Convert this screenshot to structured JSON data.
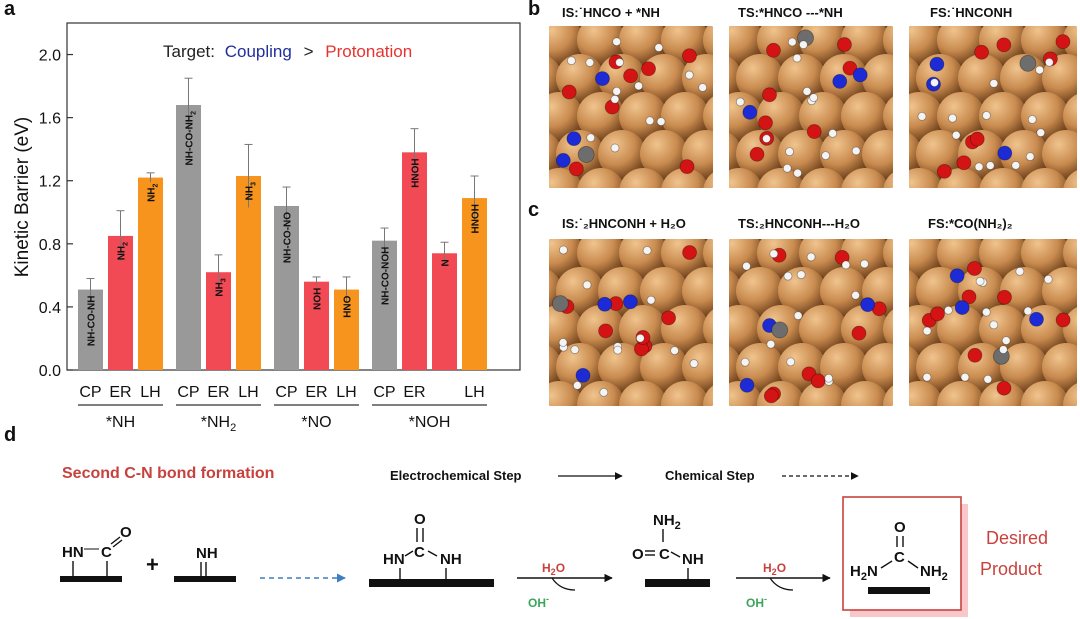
{
  "panels": {
    "a": "a",
    "b": "b",
    "c": "c",
    "d": "d"
  },
  "chart_data": {
    "type": "bar",
    "ylabel": "Kinetic Barrier (eV)",
    "ylim": [
      0.0,
      2.2
    ],
    "yticks": [
      "0.0",
      "0.4",
      "0.8",
      "1.2",
      "1.6",
      "2.0"
    ],
    "target_label": "Target:",
    "coupling_label": "Coupling",
    "gt_label": ">",
    "protonation_label": "Protonation",
    "colors": {
      "CP": "#999999",
      "ER": "#f24a54",
      "LH": "#f7941d",
      "coupling": "#1f2f9c",
      "protonation": "#e8322f"
    },
    "groups": [
      {
        "name_main": "*NH",
        "name_sub": "",
        "bars": [
          {
            "type": "CP",
            "tick": "CP",
            "value": 0.51,
            "err": 0.07,
            "label": "NH-CO-NH",
            "sub": ""
          },
          {
            "type": "ER",
            "tick": "ER",
            "value": 0.85,
            "err": 0.16,
            "label": "NH",
            "sub": "2"
          },
          {
            "type": "LH",
            "tick": "LH",
            "value": 1.22,
            "err": 0.03,
            "label": "NH",
            "sub": "2"
          }
        ]
      },
      {
        "name_main": "*NH",
        "name_sub": "2",
        "bars": [
          {
            "type": "CP",
            "tick": "CP",
            "value": 1.68,
            "err": 0.17,
            "label": "NH-CO-NH",
            "sub": "2"
          },
          {
            "type": "ER",
            "tick": "ER",
            "value": 0.62,
            "err": 0.11,
            "label": "NH",
            "sub": "3"
          },
          {
            "type": "LH",
            "tick": "LH",
            "value": 1.23,
            "err": 0.2,
            "label": "NH",
            "sub": "3"
          }
        ]
      },
      {
        "name_main": "*NO",
        "name_sub": "",
        "bars": [
          {
            "type": "CP",
            "tick": "CP",
            "value": 1.04,
            "err": 0.12,
            "label": "NH-CO-NO",
            "sub": ""
          },
          {
            "type": "ER",
            "tick": "ER",
            "value": 0.56,
            "err": 0.03,
            "label": "NOH",
            "sub": ""
          },
          {
            "type": "LH",
            "tick": "LH",
            "value": 0.51,
            "err": 0.08,
            "label": "HNO",
            "sub": ""
          }
        ]
      },
      {
        "name_main": "*NOH",
        "name_sub": "",
        "bars": [
          {
            "type": "CP",
            "tick": "CP",
            "value": 0.82,
            "err": 0.08,
            "label": "NH-CO-NOH",
            "sub": ""
          },
          {
            "type": "ER",
            "tick": "ER",
            "value": 1.38,
            "err": 0.15,
            "label": "HNOH",
            "sub": ""
          },
          {
            "type": "ER",
            "tick": "",
            "value": 0.74,
            "err": 0.07,
            "label": "N",
            "sub": ""
          },
          {
            "type": "LH",
            "tick": "LH",
            "value": 1.09,
            "err": 0.14,
            "label": "HNOH",
            "sub": ""
          }
        ]
      }
    ]
  },
  "panel_b": {
    "is_label": "IS:˙HNCO + *NH",
    "ts_label": "TS:*HNCO ---*NH",
    "fs_label": "FS:˙HNCONH"
  },
  "panel_c": {
    "is_label": "IS:˙₂HNCONH + H₂O",
    "ts_label": "TS:₂HNCONH---H₂O",
    "fs_label": "FS:*CO(NH₂)₂"
  },
  "panel_d": {
    "heading": "Second C-N bond formation",
    "electrochemical_label": "Electrochemical Step",
    "chemical_label": "Chemical Step",
    "plus": "+",
    "m1_hn": "HN",
    "m1_dash": "—",
    "m1_c": "C",
    "m1_o": "O",
    "m2_nh": "NH",
    "m3_o": "O",
    "m3_c": "C",
    "m3_hn": "HN",
    "m3_nh": "NH",
    "m4_nh2": "NH",
    "m4_nh2_sub": "2",
    "m4_o": "O",
    "m4_c": "C",
    "m4_nh": "NH",
    "m5_o": "O",
    "m5_c": "C",
    "m5_h2n": "H",
    "m5_h2n_sub": "2",
    "m5_h2n_n": "N",
    "m5_nh2": "NH",
    "m5_nh2_sub": "2",
    "h2o_1": "H",
    "h2o_1_sub": "2",
    "h2o_1_o": "O",
    "oh_1": "OH",
    "oh_1_sup": "-",
    "h2o_2": "H",
    "h2o_2_sub": "2",
    "h2o_2_o": "O",
    "oh_2": "OH",
    "oh_2_sup": "-",
    "desired_1": "Desired",
    "desired_2": "Product"
  }
}
